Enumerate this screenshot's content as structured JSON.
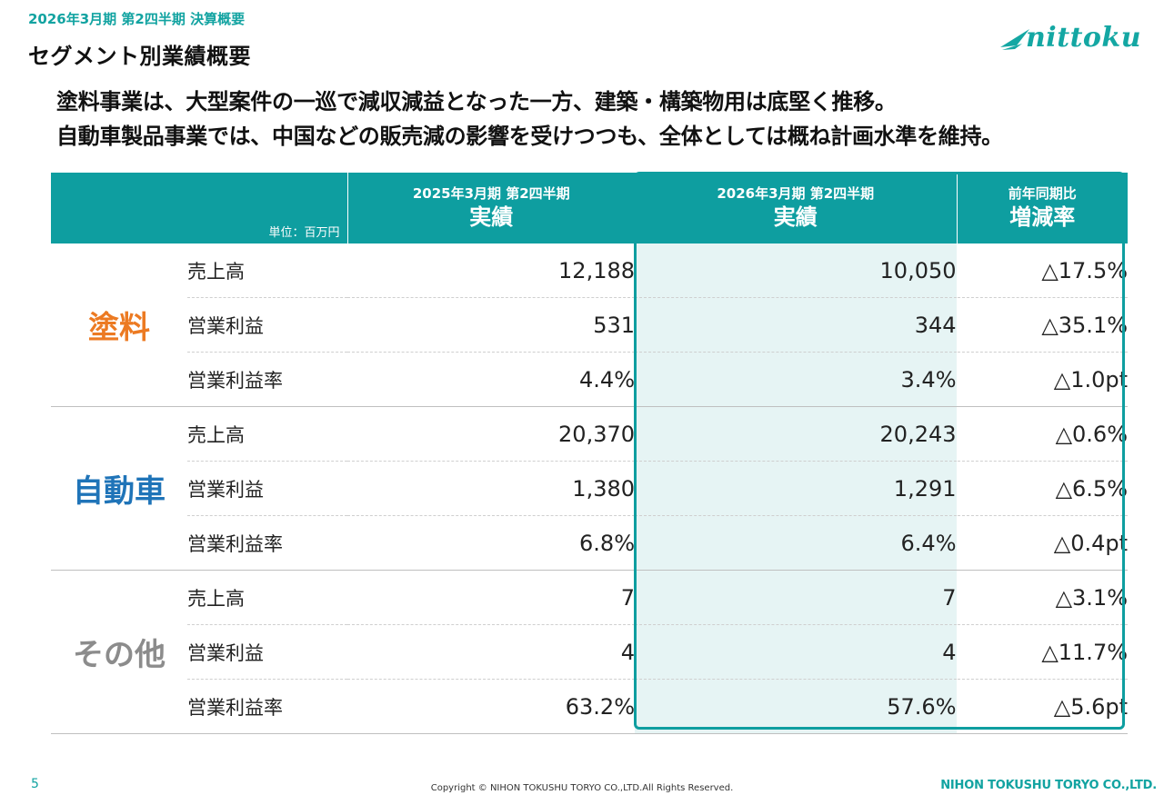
{
  "header": {
    "kicker": "2026年3月期 第2四半期 決算概要",
    "title": "セグメント別業績概要",
    "logo_text": "nittoku",
    "brand_color": "#12a3a1"
  },
  "headline": {
    "line1": "塗料事業は、大型案件の一巡で減収減益となった一方、建築・構築物用は底堅く推移。",
    "line2": "自動車製品事業では、中国などの販売減の影響を受けつつも、全体としては概ね計画水準を維持。"
  },
  "table": {
    "unit": "単位：百万円",
    "columns": [
      {
        "top": "2025年3月期 第2四半期",
        "main": "実績"
      },
      {
        "top": "2026年3月期 第2四半期",
        "main": "実績"
      },
      {
        "top": "前年同期比",
        "main": "増減率"
      }
    ],
    "segments": [
      {
        "name": "塗料",
        "color": "#ec7a22",
        "rows": [
          {
            "item": "売上高",
            "prev": "12,188",
            "cur": "10,050",
            "change": "△17.5%"
          },
          {
            "item": "営業利益",
            "prev": "531",
            "cur": "344",
            "change": "△35.1%"
          },
          {
            "item": "営業利益率",
            "prev": "4.4%",
            "cur": "3.4%",
            "change": "△1.0pt"
          }
        ]
      },
      {
        "name": "自動車",
        "color": "#1f74b8",
        "rows": [
          {
            "item": "売上高",
            "prev": "20,370",
            "cur": "20,243",
            "change": "△0.6%"
          },
          {
            "item": "営業利益",
            "prev": "1,380",
            "cur": "1,291",
            "change": "△6.5%"
          },
          {
            "item": "営業利益率",
            "prev": "6.8%",
            "cur": "6.4%",
            "change": "△0.4pt"
          }
        ]
      },
      {
        "name": "その他",
        "color": "#8c8c8c",
        "rows": [
          {
            "item": "売上高",
            "prev": "7",
            "cur": "7",
            "change": "△3.1%"
          },
          {
            "item": "営業利益",
            "prev": "4",
            "cur": "4",
            "change": "△11.7%"
          },
          {
            "item": "営業利益率",
            "prev": "63.2%",
            "cur": "57.6%",
            "change": "△5.6pt"
          }
        ]
      }
    ]
  },
  "footer": {
    "page_number": "5",
    "copyright": "Copyright © NIHON TOKUSHU TORYO CO.,LTD.All Rights Reserved.",
    "company": "NIHON TOKUSHU TORYO CO.,LTD."
  }
}
